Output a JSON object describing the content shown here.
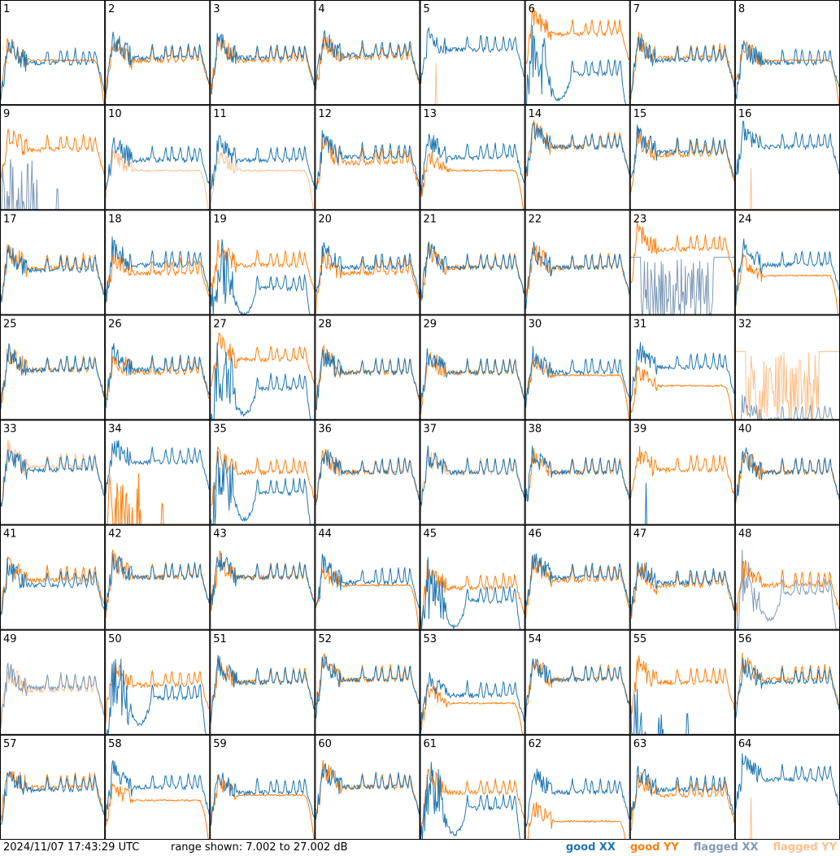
{
  "footer": {
    "timestamp": "2024/11/07 17:43:29 UTC",
    "range": "range shown: 7.002 to 27.002 dB"
  },
  "legend": [
    {
      "label": "good XX",
      "color": "#1f77b4"
    },
    {
      "label": "good YY",
      "color": "#ff7f0e"
    },
    {
      "label": "flagged XX",
      "color": "#7f9bb8"
    },
    {
      "label": "flagged YY",
      "color": "#ffbf8a"
    }
  ],
  "chart_data": {
    "type": "line",
    "ylim": [
      7.002,
      27.002
    ],
    "yunit": "dB",
    "grid": false,
    "legend_placement": "bottom-right",
    "layout": "8x8 small multiples",
    "panels": [
      {
        "id": "1",
        "xx": "good",
        "yy": "good",
        "xx_level": 15.0,
        "yy_level": 15.5,
        "variant": "falloff"
      },
      {
        "id": "2",
        "xx": "good",
        "yy": "good",
        "xx_level": 16.0,
        "yy_level": 15.5,
        "variant": "normal"
      },
      {
        "id": "3",
        "xx": "good",
        "yy": "good",
        "xx_level": 16.0,
        "yy_level": 15.5,
        "variant": "normal"
      },
      {
        "id": "4",
        "xx": "good",
        "yy": "good",
        "xx_level": 16.5,
        "yy_level": 16.0,
        "variant": "normal"
      },
      {
        "id": "5",
        "xx": "good",
        "yy": "flagged",
        "xx_level": 17.5,
        "yy_level": 7.0,
        "variant": "yy_flat_spike"
      },
      {
        "id": "6",
        "xx": "good",
        "yy": "good",
        "xx_level": 13.0,
        "yy_level": 20.5,
        "variant": "xx_noisy_dip"
      },
      {
        "id": "7",
        "xx": "good",
        "yy": "good",
        "xx_level": 15.5,
        "yy_level": 16.0,
        "variant": "normal"
      },
      {
        "id": "8",
        "xx": "good",
        "yy": "good",
        "xx_level": 15.0,
        "yy_level": 15.5,
        "variant": "falloff"
      },
      {
        "id": "9",
        "xx": "flagged",
        "yy": "good",
        "xx_level": 7.0,
        "yy_level": 18.5,
        "variant": "xx_spikes_low"
      },
      {
        "id": "10",
        "xx": "good",
        "yy": "flagged",
        "xx_level": 16.5,
        "yy_level": 14.5,
        "variant": "yy_flagged_falloff"
      },
      {
        "id": "11",
        "xx": "good",
        "yy": "flagged",
        "xx_level": 16.5,
        "yy_level": 14.5,
        "variant": "yy_flagged_falloff"
      },
      {
        "id": "12",
        "xx": "good",
        "yy": "good",
        "xx_level": 17.0,
        "yy_level": 16.0,
        "variant": "normal"
      },
      {
        "id": "13",
        "xx": "good",
        "yy": "good",
        "xx_level": 17.0,
        "yy_level": 14.5,
        "variant": "yy_lower_falloff"
      },
      {
        "id": "14",
        "xx": "good",
        "yy": "good",
        "xx_level": 19.0,
        "yy_level": 19.0,
        "variant": "normal"
      },
      {
        "id": "15",
        "xx": "good",
        "yy": "good",
        "xx_level": 18.0,
        "yy_level": 17.5,
        "variant": "normal"
      },
      {
        "id": "16",
        "xx": "good",
        "yy": "flagged",
        "xx_level": 19.0,
        "yy_level": 7.0,
        "variant": "yy_flat_spike"
      },
      {
        "id": "17",
        "xx": "good",
        "yy": "good",
        "xx_level": 15.5,
        "yy_level": 16.0,
        "variant": "normal"
      },
      {
        "id": "18",
        "xx": "good",
        "yy": "good",
        "xx_level": 16.5,
        "yy_level": 15.0,
        "variant": "normal"
      },
      {
        "id": "19",
        "xx": "good",
        "yy": "good",
        "xx_level": 12.0,
        "yy_level": 16.5,
        "variant": "xx_lower"
      },
      {
        "id": "20",
        "xx": "good",
        "yy": "good",
        "xx_level": 16.0,
        "yy_level": 15.0,
        "variant": "normal"
      },
      {
        "id": "21",
        "xx": "good",
        "yy": "good",
        "xx_level": 16.0,
        "yy_level": 16.0,
        "variant": "normal"
      },
      {
        "id": "22",
        "xx": "good",
        "yy": "good",
        "xx_level": 16.0,
        "yy_level": 16.0,
        "variant": "normal"
      },
      {
        "id": "23",
        "xx": "flagged",
        "yy": "good",
        "xx_level": 11.0,
        "yy_level": 19.5,
        "variant": "xx_flagged_noisy"
      },
      {
        "id": "24",
        "xx": "good",
        "yy": "good",
        "xx_level": 16.5,
        "yy_level": 14.5,
        "variant": "yy_lower_falloff"
      },
      {
        "id": "25",
        "xx": "good",
        "yy": "good",
        "xx_level": 16.5,
        "yy_level": 16.5,
        "variant": "normal"
      },
      {
        "id": "26",
        "xx": "good",
        "yy": "good",
        "xx_level": 16.5,
        "yy_level": 16.0,
        "variant": "normal"
      },
      {
        "id": "27",
        "xx": "good",
        "yy": "good",
        "xx_level": 13.0,
        "yy_level": 18.5,
        "variant": "xx_noisy_dip"
      },
      {
        "id": "28",
        "xx": "good",
        "yy": "good",
        "xx_level": 16.0,
        "yy_level": 16.0,
        "variant": "normal"
      },
      {
        "id": "29",
        "xx": "good",
        "yy": "good",
        "xx_level": 16.0,
        "yy_level": 16.0,
        "variant": "normal"
      },
      {
        "id": "30",
        "xx": "good",
        "yy": "good",
        "xx_level": 16.0,
        "yy_level": 15.5,
        "variant": "falloff"
      },
      {
        "id": "31",
        "xx": "good",
        "yy": "good",
        "xx_level": 17.0,
        "yy_level": 13.5,
        "variant": "yy_lower_falloff"
      },
      {
        "id": "32",
        "xx": "flagged",
        "yy": "flagged",
        "xx_level": 7.0,
        "yy_level": 13.0,
        "variant": "yy_flagged_noisy"
      },
      {
        "id": "33",
        "xx": "good",
        "yy": "flagged",
        "xx_level": 17.5,
        "yy_level": 18.0,
        "variant": "yy_flagged_overlay"
      },
      {
        "id": "34",
        "xx": "good",
        "yy": "good",
        "xx_level": 19.0,
        "yy_level": 7.0,
        "variant": "yy_spikes_low"
      },
      {
        "id": "35",
        "xx": "good",
        "yy": "good",
        "xx_level": 13.0,
        "yy_level": 17.0,
        "variant": "xx_lower"
      },
      {
        "id": "36",
        "xx": "good",
        "yy": "good",
        "xx_level": 17.0,
        "yy_level": 17.0,
        "variant": "normal"
      },
      {
        "id": "37",
        "xx": "good",
        "yy": "flagged",
        "xx_level": 17.0,
        "yy_level": 17.0,
        "variant": "yy_flagged_overlay"
      },
      {
        "id": "38",
        "xx": "good",
        "yy": "good",
        "xx_level": 17.0,
        "yy_level": 17.0,
        "variant": "normal"
      },
      {
        "id": "39",
        "xx": "good",
        "yy": "good",
        "xx_level": 7.0,
        "yy_level": 17.5,
        "variant": "xx_flat_spike"
      },
      {
        "id": "40",
        "xx": "good",
        "yy": "good",
        "xx_level": 17.0,
        "yy_level": 17.0,
        "variant": "normal"
      },
      {
        "id": "41",
        "xx": "good",
        "yy": "good",
        "xx_level": 15.5,
        "yy_level": 16.5,
        "variant": "normal"
      },
      {
        "id": "42",
        "xx": "good",
        "yy": "good",
        "xx_level": 17.0,
        "yy_level": 17.0,
        "variant": "normal"
      },
      {
        "id": "43",
        "xx": "good",
        "yy": "good",
        "xx_level": 17.0,
        "yy_level": 17.0,
        "variant": "normal"
      },
      {
        "id": "44",
        "xx": "good",
        "yy": "good",
        "xx_level": 16.0,
        "yy_level": 15.5,
        "variant": "falloff"
      },
      {
        "id": "45",
        "xx": "good",
        "yy": "good",
        "xx_level": 12.5,
        "yy_level": 15.0,
        "variant": "xx_lower"
      },
      {
        "id": "46",
        "xx": "good",
        "yy": "good",
        "xx_level": 17.0,
        "yy_level": 16.5,
        "variant": "normal"
      },
      {
        "id": "47",
        "xx": "good",
        "yy": "good",
        "xx_level": 16.0,
        "yy_level": 15.5,
        "variant": "normal"
      },
      {
        "id": "48",
        "xx": "flagged",
        "yy": "good",
        "xx_level": 14.0,
        "yy_level": 15.5,
        "variant": "xx_flagged_lower"
      },
      {
        "id": "49",
        "xx": "flagged",
        "yy": "flagged",
        "xx_level": 16.0,
        "yy_level": 15.5,
        "variant": "both_flagged"
      },
      {
        "id": "50",
        "xx": "good",
        "yy": "good",
        "xx_level": 14.0,
        "yy_level": 16.5,
        "variant": "xx_lower"
      },
      {
        "id": "51",
        "xx": "good",
        "yy": "good",
        "xx_level": 17.0,
        "yy_level": 17.0,
        "variant": "normal"
      },
      {
        "id": "52",
        "xx": "good",
        "yy": "good",
        "xx_level": 17.5,
        "yy_level": 17.5,
        "variant": "normal"
      },
      {
        "id": "53",
        "xx": "good",
        "yy": "good",
        "xx_level": 14.5,
        "yy_level": 13.0,
        "variant": "yy_lower_falloff"
      },
      {
        "id": "54",
        "xx": "good",
        "yy": "good",
        "xx_level": 17.5,
        "yy_level": 17.5,
        "variant": "normal"
      },
      {
        "id": "55",
        "xx": "good",
        "yy": "good",
        "xx_level": 7.0,
        "yy_level": 17.0,
        "variant": "xx_spikes_low"
      },
      {
        "id": "56",
        "xx": "good",
        "yy": "good",
        "xx_level": 17.0,
        "yy_level": 17.5,
        "variant": "normal"
      },
      {
        "id": "57",
        "xx": "good",
        "yy": "good",
        "xx_level": 16.5,
        "yy_level": 17.0,
        "variant": "normal"
      },
      {
        "id": "58",
        "xx": "good",
        "yy": "good",
        "xx_level": 17.0,
        "yy_level": 14.5,
        "variant": "yy_lower_falloff"
      },
      {
        "id": "59",
        "xx": "good",
        "yy": "good",
        "xx_level": 16.0,
        "yy_level": 15.5,
        "variant": "falloff"
      },
      {
        "id": "60",
        "xx": "good",
        "yy": "good",
        "xx_level": 17.0,
        "yy_level": 17.0,
        "variant": "normal"
      },
      {
        "id": "61",
        "xx": "good",
        "yy": "good",
        "xx_level": 13.0,
        "yy_level": 16.0,
        "variant": "xx_noisy_dip"
      },
      {
        "id": "62",
        "xx": "good",
        "yy": "good",
        "xx_level": 16.0,
        "yy_level": 10.5,
        "variant": "yy_lower_falloff"
      },
      {
        "id": "63",
        "xx": "good",
        "yy": "good",
        "xx_level": 16.5,
        "yy_level": 15.5,
        "variant": "normal"
      },
      {
        "id": "64",
        "xx": "good",
        "yy": "flagged",
        "xx_level": 18.5,
        "yy_level": 7.0,
        "variant": "yy_flat_spike"
      }
    ]
  }
}
